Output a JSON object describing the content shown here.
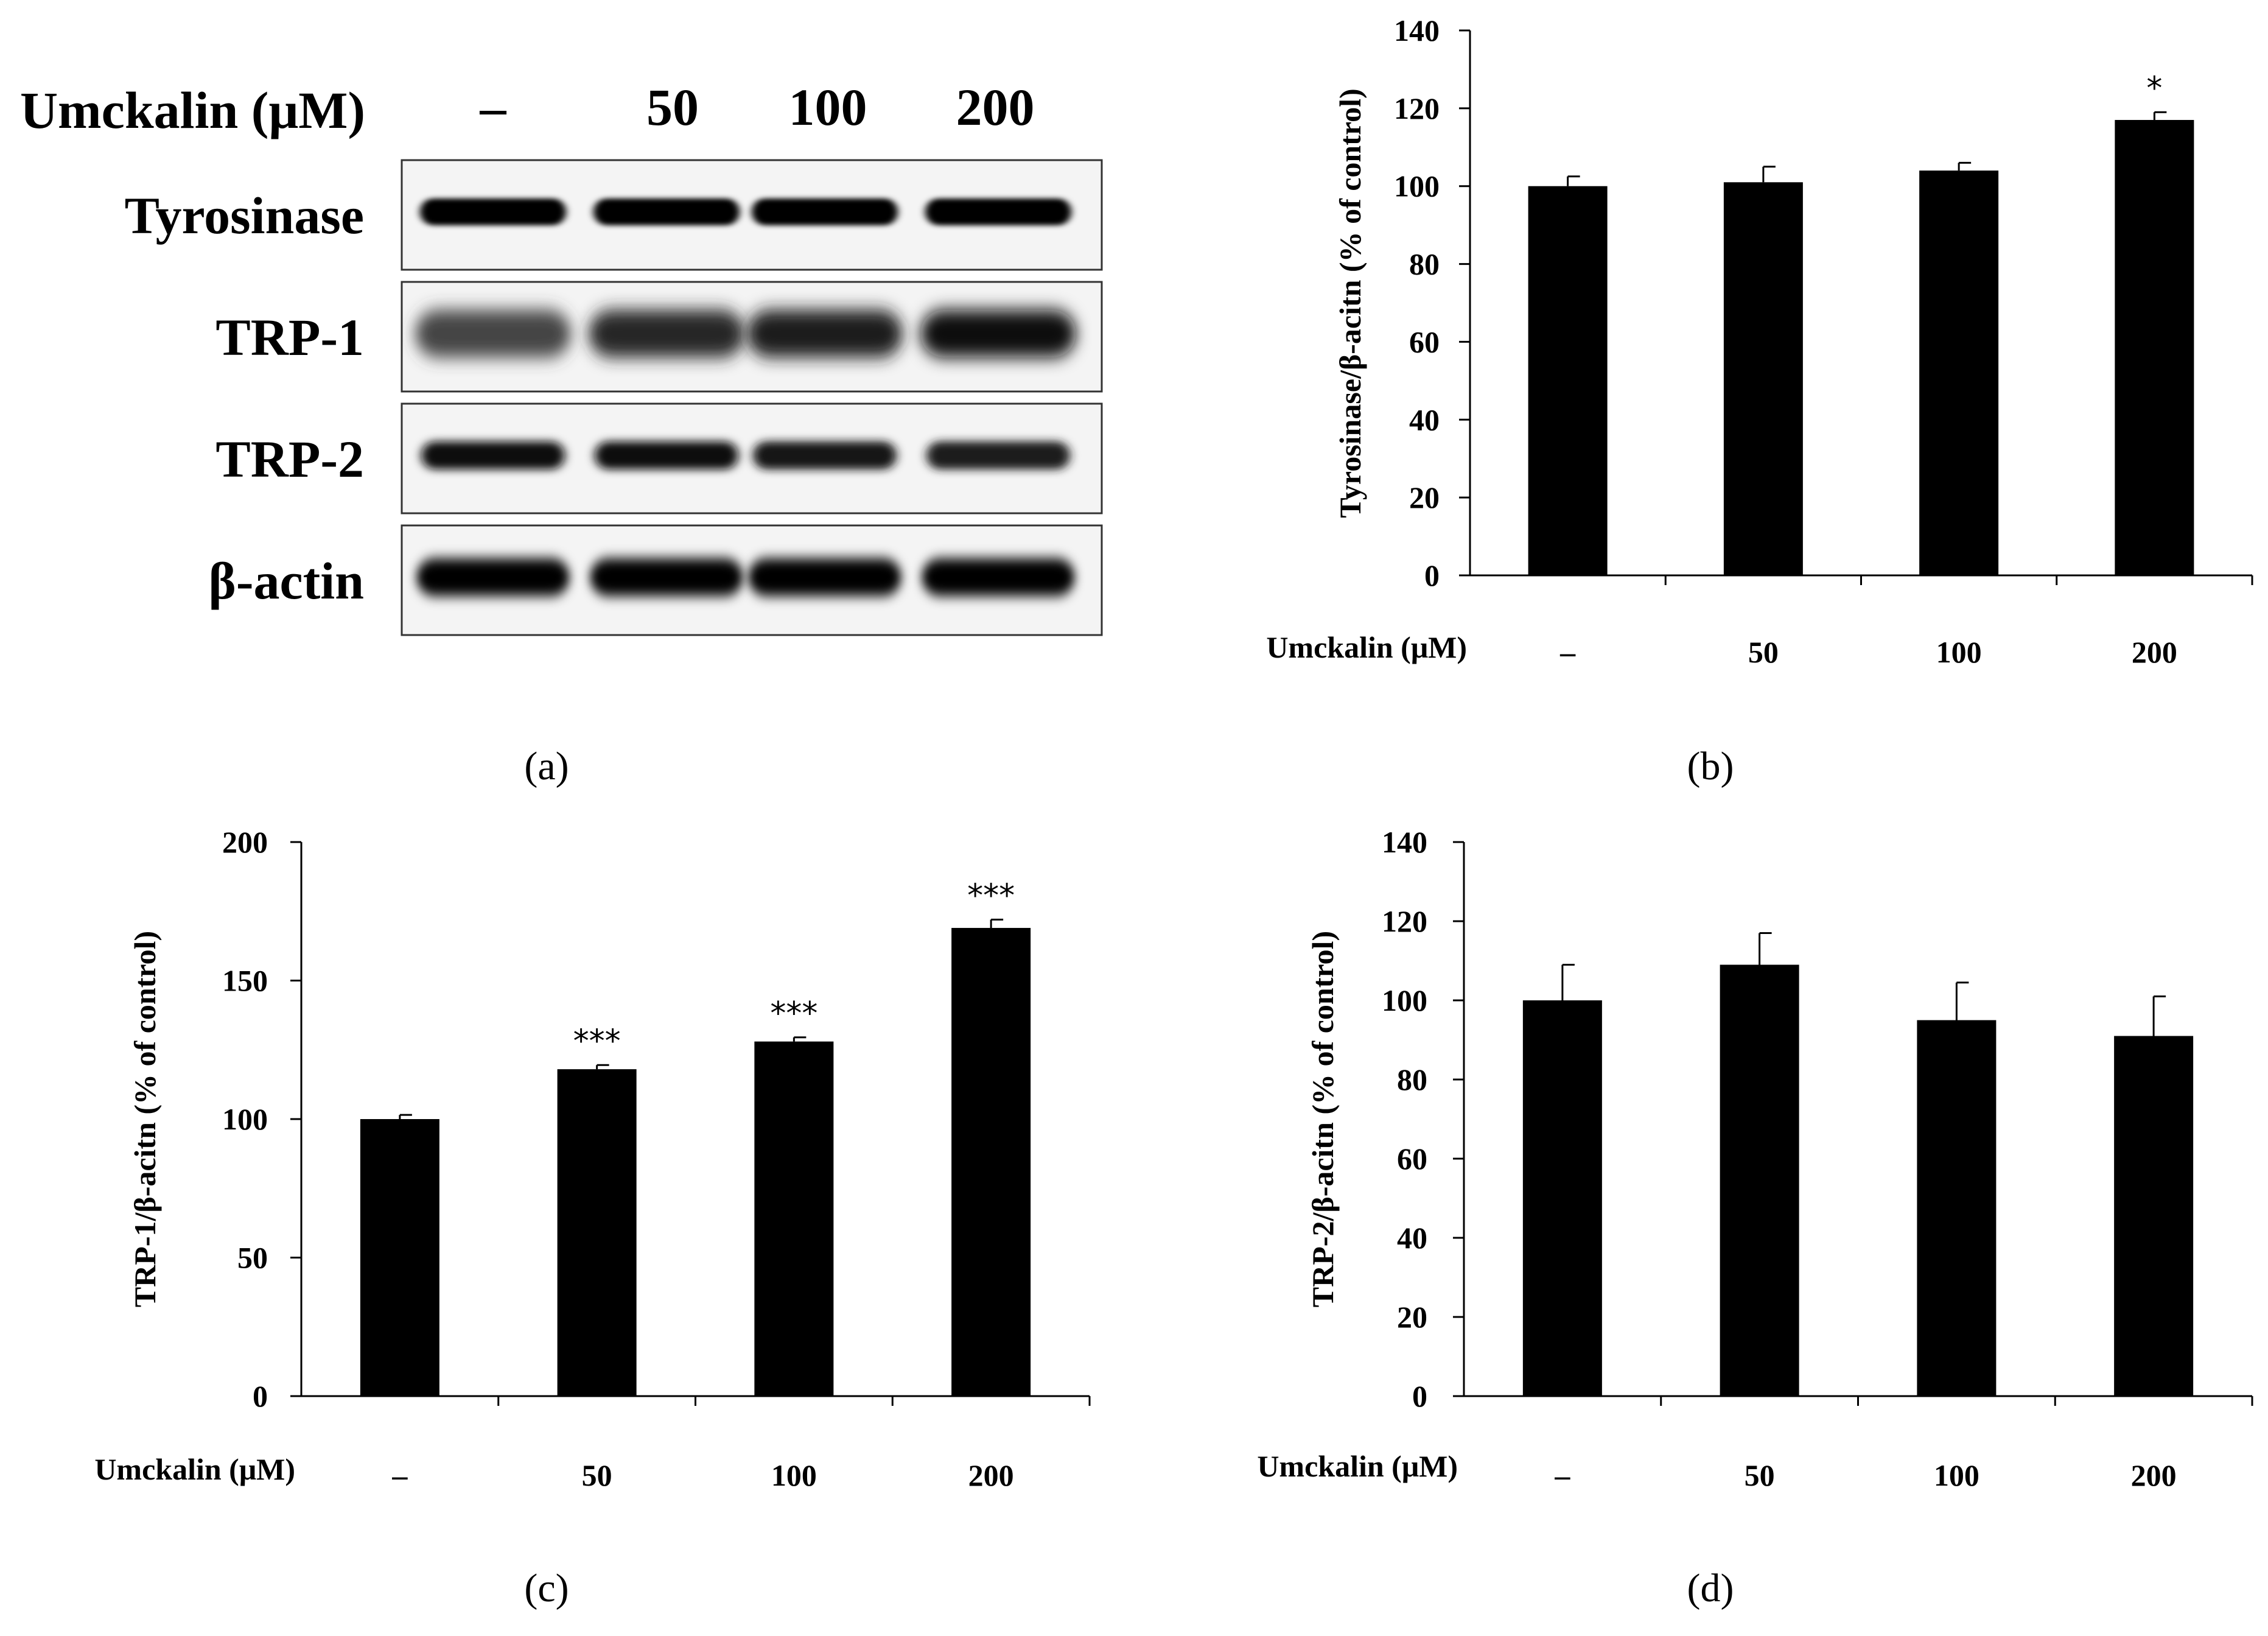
{
  "blot": {
    "treatment_label": "Umckalin (μM)",
    "lane_labels": [
      "–",
      "50",
      "100",
      "200"
    ],
    "rows": [
      {
        "name": "Tyrosinase",
        "intensities": [
          1.0,
          1.0,
          1.0,
          1.0
        ],
        "profile": "sharp"
      },
      {
        "name": "TRP-1",
        "intensities": [
          0.55,
          0.75,
          0.8,
          0.95
        ],
        "profile": "diffuse"
      },
      {
        "name": "TRP-2",
        "intensities": [
          0.95,
          0.95,
          0.85,
          0.8
        ],
        "profile": "medium"
      },
      {
        "name": "β-actin",
        "intensities": [
          1.0,
          1.0,
          1.0,
          1.0
        ],
        "profile": "wide"
      }
    ],
    "panel_label": "(a)"
  },
  "chart_data": [
    {
      "type": "bar",
      "id": "b",
      "panel_label": "(b)",
      "categories": [
        "–",
        "50",
        "100",
        "200"
      ],
      "values": [
        100,
        101,
        104,
        117
      ],
      "errors": [
        2.5,
        4,
        2,
        2
      ],
      "significance": [
        "",
        "",
        "",
        "*"
      ],
      "xlabel": "Umckalin (μM)",
      "ylabel": "Tyrosinase/β-acitn (% of control)",
      "ylim": [
        0,
        140
      ],
      "yticks": [
        0,
        20,
        40,
        60,
        80,
        100,
        120,
        140
      ]
    },
    {
      "type": "bar",
      "id": "c",
      "panel_label": "(c)",
      "categories": [
        "–",
        "50",
        "100",
        "200"
      ],
      "values": [
        100,
        118,
        128,
        169
      ],
      "errors": [
        1.5,
        1.5,
        1.5,
        3
      ],
      "significance": [
        "",
        "***",
        "***",
        "***"
      ],
      "xlabel": "Umckalin (μM)",
      "ylabel": "TRP-1/β-acitn (% of control)",
      "ylim": [
        0,
        200
      ],
      "yticks": [
        0,
        50,
        100,
        150,
        200
      ]
    },
    {
      "type": "bar",
      "id": "d",
      "panel_label": "(d)",
      "categories": [
        "–",
        "50",
        "100",
        "200"
      ],
      "values": [
        100,
        109,
        95,
        91
      ],
      "errors": [
        9,
        8,
        9.5,
        10
      ],
      "significance": [
        "",
        "",
        "",
        ""
      ],
      "xlabel": "Umckalin (μM)",
      "ylabel": "TRP-2/β-acitn (% of control)",
      "ylim": [
        0,
        140
      ],
      "yticks": [
        0,
        20,
        40,
        60,
        80,
        100,
        120,
        140
      ]
    }
  ]
}
